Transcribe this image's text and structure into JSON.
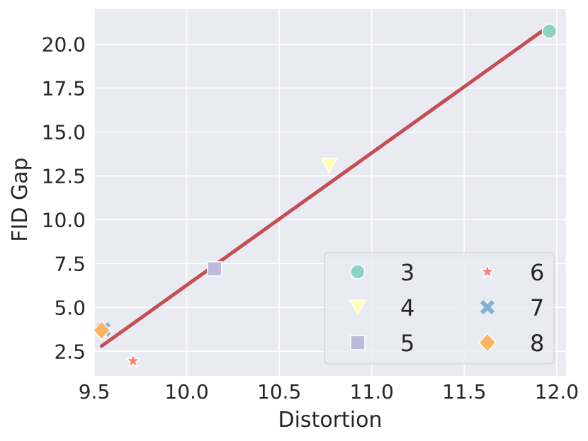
{
  "chart_data": {
    "type": "scatter",
    "xlabel": "Distortion",
    "ylabel": "FID Gap",
    "xlim": [
      9.5,
      12.05
    ],
    "ylim": [
      1.1,
      22.0
    ],
    "x_ticks": [
      "9.5",
      "10.0",
      "10.5",
      "11.0",
      "11.5",
      "12.0"
    ],
    "y_ticks": [
      "2.5",
      "5.0",
      "7.5",
      "10.0",
      "12.5",
      "15.0",
      "17.5",
      "20.0"
    ],
    "grid": true,
    "legend_position": "lower-right",
    "series": [
      {
        "name": "3",
        "marker": "circle",
        "color": "#8dd3c7",
        "points": [
          {
            "x": 11.96,
            "y": 20.75
          }
        ]
      },
      {
        "name": "4",
        "marker": "triangle-down",
        "color": "#ffffb3",
        "points": [
          {
            "x": 10.77,
            "y": 13.1
          }
        ]
      },
      {
        "name": "5",
        "marker": "square",
        "color": "#bebada",
        "points": [
          {
            "x": 10.15,
            "y": 7.2
          }
        ]
      },
      {
        "name": "6",
        "marker": "star",
        "color": "#fb8072",
        "points": [
          {
            "x": 9.71,
            "y": 1.95
          }
        ]
      },
      {
        "name": "7",
        "marker": "x",
        "color": "#80b1d3",
        "points": [
          {
            "x": 9.55,
            "y": 3.75
          }
        ]
      },
      {
        "name": "8",
        "marker": "diamond",
        "color": "#fdb462",
        "points": [
          {
            "x": 9.54,
            "y": 3.7
          }
        ]
      }
    ],
    "fit_line": {
      "color": "#c44e52",
      "points": [
        {
          "x": 9.54,
          "y": 2.8
        },
        {
          "x": 11.96,
          "y": 21.05
        }
      ]
    }
  }
}
